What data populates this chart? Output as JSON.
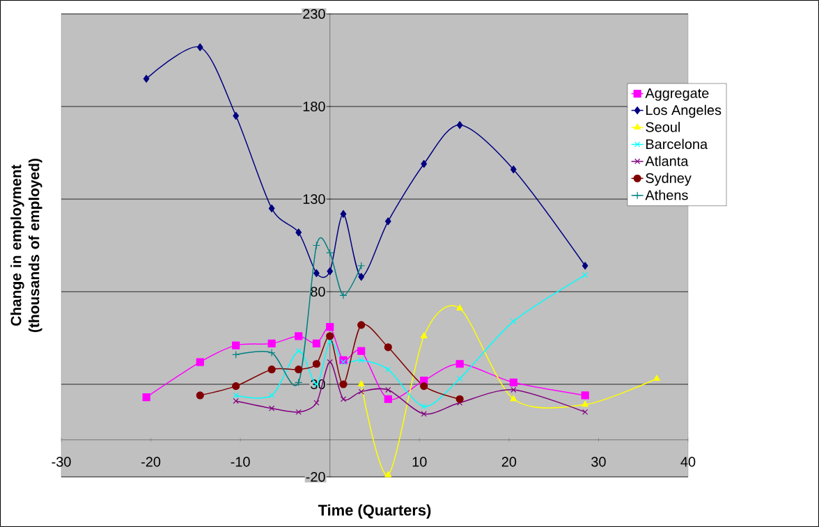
{
  "chart_data": {
    "type": "line",
    "xlabel": "Time (Quarters)",
    "ylabel": "Change in employment (thousands of employed)",
    "xlim": [
      -30,
      40
    ],
    "xticks": [
      -30,
      -20,
      -10,
      10,
      20,
      30,
      40
    ],
    "ylim": [
      -20,
      230
    ],
    "yticks": [
      -20,
      30,
      80,
      130,
      180,
      230
    ],
    "grid": "y",
    "legend": "right",
    "series": [
      {
        "name": "Aggregate",
        "color": "#ff00ff",
        "marker": "square",
        "x": [
          -20.5,
          -14.5,
          -10.5,
          -6.5,
          -3.5,
          -1.5,
          0,
          1.5,
          3.5,
          6.5,
          10.5,
          14.5,
          20.5,
          28.5
        ],
        "values": [
          23,
          42,
          51,
          52,
          56,
          52,
          61,
          43,
          48,
          22,
          32,
          41,
          31,
          24
        ]
      },
      {
        "name": "Los Angeles",
        "color": "#000080",
        "marker": "diamond",
        "x": [
          -20.5,
          -14.5,
          -10.5,
          -6.5,
          -3.5,
          -1.5,
          0,
          1.5,
          3.5,
          6.5,
          10.5,
          14.5,
          20.5,
          28.5
        ],
        "values": [
          195,
          212,
          175,
          125,
          112,
          90,
          91,
          122,
          88,
          118,
          149,
          170,
          146,
          94
        ]
      },
      {
        "name": "Seoul",
        "color": "#ffff00",
        "marker": "triangle",
        "x": [
          3.5,
          6.5,
          10.5,
          14.5,
          20.5,
          28.5,
          36.5
        ],
        "values": [
          30,
          -19,
          56,
          71,
          22,
          19,
          33
        ]
      },
      {
        "name": "Barcelona",
        "color": "#00ffff",
        "marker": "cross",
        "x": [
          -10.5,
          -6.5,
          -3.5,
          -1.5,
          0,
          1.5,
          3.5,
          6.5,
          10.5,
          14.5,
          20.5,
          28.5
        ],
        "values": [
          24,
          24,
          48,
          30,
          53,
          42,
          43,
          38,
          18,
          33,
          64,
          89
        ]
      },
      {
        "name": "Atlanta",
        "color": "#800080",
        "marker": "cross",
        "x": [
          -10.5,
          -6.5,
          -3.5,
          -1.5,
          0,
          1.5,
          3.5,
          6.5,
          10.5,
          14.5,
          20.5,
          28.5
        ],
        "values": [
          21,
          17,
          15,
          20,
          42,
          22,
          26,
          27,
          14,
          20,
          27,
          15
        ]
      },
      {
        "name": "Sydney",
        "color": "#800000",
        "marker": "circle",
        "x": [
          -14.5,
          -10.5,
          -6.5,
          -3.5,
          -1.5,
          0,
          1.5,
          3.5,
          6.5,
          10.5,
          14.5
        ],
        "values": [
          24,
          29,
          38,
          38,
          41,
          56,
          30,
          62,
          50,
          29,
          22
        ]
      },
      {
        "name": "Athens",
        "color": "#008080",
        "marker": "plus",
        "x": [
          -10.5,
          -6.5,
          -3.5,
          -1.5,
          0,
          1.5,
          3.5
        ],
        "values": [
          46,
          47,
          31,
          105,
          101,
          78,
          94
        ]
      }
    ]
  }
}
